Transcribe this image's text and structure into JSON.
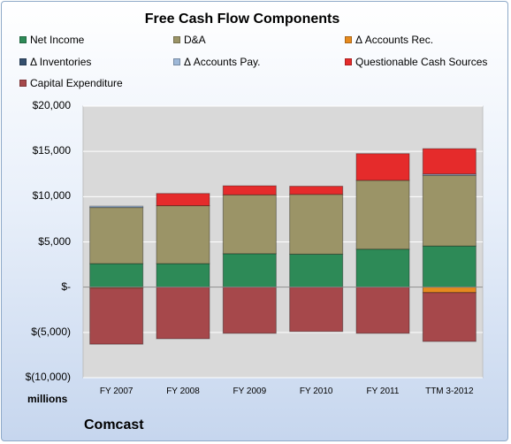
{
  "chart_data": {
    "type": "bar",
    "stacked": true,
    "title": "Free Cash Flow Components",
    "categories": [
      "FY 2007",
      "FY 2008",
      "FY 2009",
      "FY 2010",
      "FY 2011",
      "TTM 3-2012"
    ],
    "series": [
      {
        "name": "Net Income",
        "color": "#2d8a57",
        "values": [
          2600,
          2600,
          3700,
          3650,
          4200,
          4550
        ]
      },
      {
        "name": "D&A",
        "color": "#9b9467",
        "values": [
          6200,
          6400,
          6500,
          6600,
          7600,
          7800
        ]
      },
      {
        "name": "Δ Accounts Rec.",
        "color": "#e68a1e",
        "values": [
          -100,
          0,
          0,
          0,
          0,
          -600
        ]
      },
      {
        "name": "Δ Inventories",
        "color": "#344f6e",
        "values": [
          0,
          0,
          0,
          0,
          0,
          0
        ]
      },
      {
        "name": "Δ Accounts Pay.",
        "color": "#9eb8d8",
        "values": [
          150,
          0,
          0,
          0,
          0,
          150
        ]
      },
      {
        "name": "Questionable Cash Sources",
        "color": "#e52b2b",
        "values": [
          0,
          1350,
          1000,
          900,
          2950,
          2800
        ]
      },
      {
        "name": "Capital Expenditure",
        "color": "#a6484b",
        "values": [
          -6200,
          -5700,
          -5100,
          -4900,
          -5100,
          -5400
        ]
      }
    ],
    "ylim": [
      -10000,
      20000
    ],
    "yticks": [
      {
        "value": 20000,
        "label": "$20,000"
      },
      {
        "value": 15000,
        "label": "$15,000"
      },
      {
        "value": 10000,
        "label": "$10,000"
      },
      {
        "value": 5000,
        "label": "$5,000"
      },
      {
        "value": 0,
        "label": "$-"
      },
      {
        "value": -5000,
        "label": "$(5,000)"
      },
      {
        "value": -10000,
        "label": "$(10,000)"
      }
    ],
    "ylabel": "millions",
    "company": "Comcast",
    "grid": true,
    "legend_position": "top"
  }
}
